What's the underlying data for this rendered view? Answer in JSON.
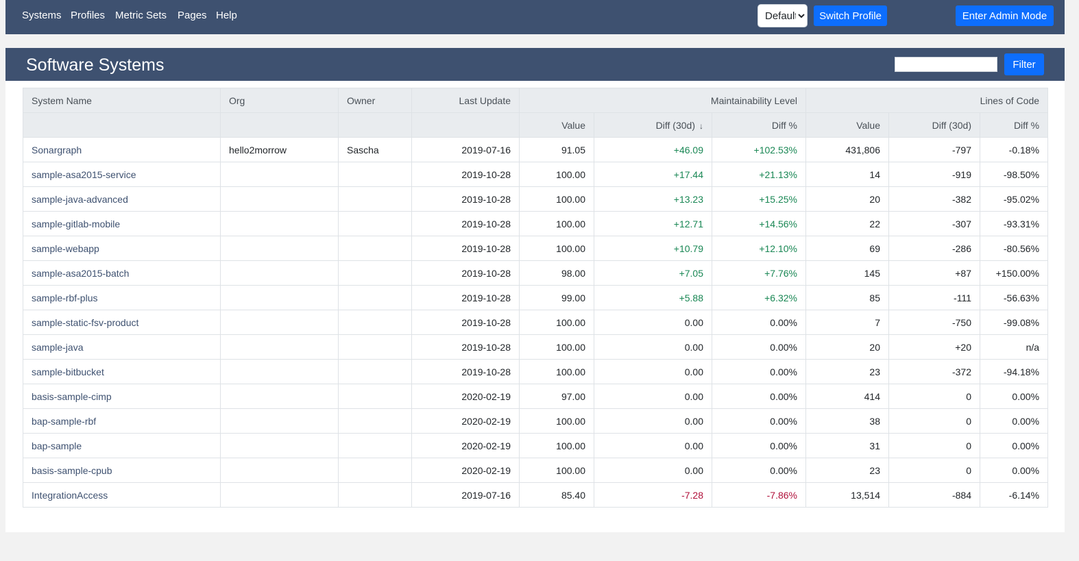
{
  "nav": {
    "items": [
      "Systems",
      "Profiles",
      "Metric Sets",
      "Pages",
      "Help"
    ],
    "profile_selected": "Default",
    "switch_profile_label": "Switch Profile",
    "admin_label": "Enter Admin Mode"
  },
  "page": {
    "title": "Software Systems",
    "filter_value": "",
    "filter_label": "Filter"
  },
  "table": {
    "group_headers": {
      "system_name": "System Name",
      "org": "Org",
      "owner": "Owner",
      "last_update": "Last Update",
      "maintainability": "Maintainability Level",
      "loc": "Lines of Code"
    },
    "sub_headers": [
      "Value",
      "Diff (30d)",
      "Diff %",
      "Value",
      "Diff (30d)",
      "Diff %"
    ],
    "sort_icon": "arrow-down-icon",
    "rows": [
      {
        "name": "Sonargraph",
        "org": "hello2morrow",
        "owner": "Sascha",
        "update": "2019-07-16",
        "ml_value": "91.05",
        "ml_diff": "+46.09",
        "ml_pct": "+102.53%",
        "loc_value": "431,806",
        "loc_diff": "-797",
        "loc_pct": "-0.18%"
      },
      {
        "name": "sample-asa2015-service",
        "org": "",
        "owner": "",
        "update": "2019-10-28",
        "ml_value": "100.00",
        "ml_diff": "+17.44",
        "ml_pct": "+21.13%",
        "loc_value": "14",
        "loc_diff": "-919",
        "loc_pct": "-98.50%"
      },
      {
        "name": "sample-java-advanced",
        "org": "",
        "owner": "",
        "update": "2019-10-28",
        "ml_value": "100.00",
        "ml_diff": "+13.23",
        "ml_pct": "+15.25%",
        "loc_value": "20",
        "loc_diff": "-382",
        "loc_pct": "-95.02%"
      },
      {
        "name": "sample-gitlab-mobile",
        "org": "",
        "owner": "",
        "update": "2019-10-28",
        "ml_value": "100.00",
        "ml_diff": "+12.71",
        "ml_pct": "+14.56%",
        "loc_value": "22",
        "loc_diff": "-307",
        "loc_pct": "-93.31%"
      },
      {
        "name": "sample-webapp",
        "org": "",
        "owner": "",
        "update": "2019-10-28",
        "ml_value": "100.00",
        "ml_diff": "+10.79",
        "ml_pct": "+12.10%",
        "loc_value": "69",
        "loc_diff": "-286",
        "loc_pct": "-80.56%"
      },
      {
        "name": "sample-asa2015-batch",
        "org": "",
        "owner": "",
        "update": "2019-10-28",
        "ml_value": "98.00",
        "ml_diff": "+7.05",
        "ml_pct": "+7.76%",
        "loc_value": "145",
        "loc_diff": "+87",
        "loc_pct": "+150.00%"
      },
      {
        "name": "sample-rbf-plus",
        "org": "",
        "owner": "",
        "update": "2019-10-28",
        "ml_value": "99.00",
        "ml_diff": "+5.88",
        "ml_pct": "+6.32%",
        "loc_value": "85",
        "loc_diff": "-111",
        "loc_pct": "-56.63%"
      },
      {
        "name": "sample-static-fsv-product",
        "org": "",
        "owner": "",
        "update": "2019-10-28",
        "ml_value": "100.00",
        "ml_diff": "0.00",
        "ml_pct": "0.00%",
        "loc_value": "7",
        "loc_diff": "-750",
        "loc_pct": "-99.08%"
      },
      {
        "name": "sample-java",
        "org": "",
        "owner": "",
        "update": "2019-10-28",
        "ml_value": "100.00",
        "ml_diff": "0.00",
        "ml_pct": "0.00%",
        "loc_value": "20",
        "loc_diff": "+20",
        "loc_pct": "n/a"
      },
      {
        "name": "sample-bitbucket",
        "org": "",
        "owner": "",
        "update": "2019-10-28",
        "ml_value": "100.00",
        "ml_diff": "0.00",
        "ml_pct": "0.00%",
        "loc_value": "23",
        "loc_diff": "-372",
        "loc_pct": "-94.18%"
      },
      {
        "name": "basis-sample-cimp",
        "org": "",
        "owner": "",
        "update": "2020-02-19",
        "ml_value": "97.00",
        "ml_diff": "0.00",
        "ml_pct": "0.00%",
        "loc_value": "414",
        "loc_diff": "0",
        "loc_pct": "0.00%"
      },
      {
        "name": "bap-sample-rbf",
        "org": "",
        "owner": "",
        "update": "2020-02-19",
        "ml_value": "100.00",
        "ml_diff": "0.00",
        "ml_pct": "0.00%",
        "loc_value": "38",
        "loc_diff": "0",
        "loc_pct": "0.00%"
      },
      {
        "name": "bap-sample",
        "org": "",
        "owner": "",
        "update": "2020-02-19",
        "ml_value": "100.00",
        "ml_diff": "0.00",
        "ml_pct": "0.00%",
        "loc_value": "31",
        "loc_diff": "0",
        "loc_pct": "0.00%"
      },
      {
        "name": "basis-sample-cpub",
        "org": "",
        "owner": "",
        "update": "2020-02-19",
        "ml_value": "100.00",
        "ml_diff": "0.00",
        "ml_pct": "0.00%",
        "loc_value": "23",
        "loc_diff": "0",
        "loc_pct": "0.00%"
      },
      {
        "name": "IntegrationAccess",
        "org": "",
        "owner": "",
        "update": "2019-07-16",
        "ml_value": "85.40",
        "ml_diff": "-7.28",
        "ml_pct": "-7.86%",
        "loc_value": "13,514",
        "loc_diff": "-884",
        "loc_pct": "-6.14%"
      }
    ]
  },
  "colors": {
    "navbar": "#3e5170",
    "primary_button": "#0d6efd",
    "positive": "#198754",
    "negative": "#b0103a",
    "link": "#3e5170"
  }
}
